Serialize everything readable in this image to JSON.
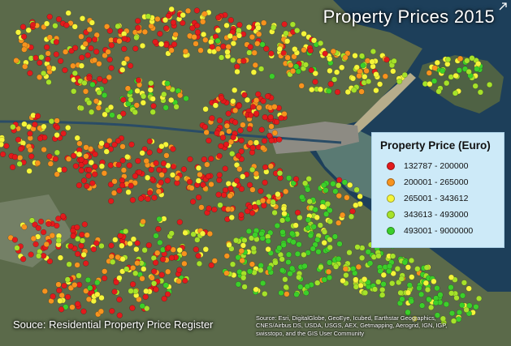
{
  "map": {
    "title": "Property Prices 2015",
    "source_text": "Souce: Residential Property Price Register",
    "attribution_lines": [
      "Source: Esri, DigitalGlobe, GeoEye, Icubed, Earthstar Geographics,",
      "CNES/Airbus DS, USDA, USGS, AEX, Getmapping, Aerogrid, IGN, IGP,",
      "swisstopo, and the GIS User Community"
    ],
    "expand_icon": "expand-arrow-icon",
    "colors": {
      "land": "#5b6a4a",
      "water": "#1d3f5a",
      "shallow_water": "#7a9a86",
      "urban": "#8a877e"
    }
  },
  "legend": {
    "title": "Property Price (Euro)",
    "classes": [
      {
        "label": "132787 - 200000",
        "color": "#e31a1c"
      },
      {
        "label": "200001 - 265000",
        "color": "#f7931e"
      },
      {
        "label": "265001 - 343612",
        "color": "#f5f53a"
      },
      {
        "label": "343613 - 493000",
        "color": "#a6e22a"
      },
      {
        "label": "493001 - 9000000",
        "color": "#3ccf2a"
      }
    ]
  }
}
